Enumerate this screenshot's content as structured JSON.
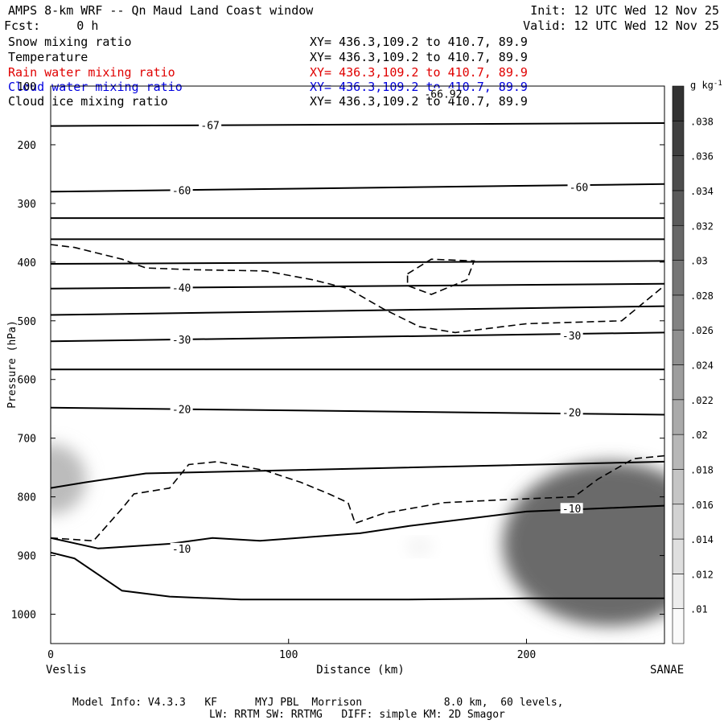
{
  "header": {
    "title_left": "AMPS 8-km WRF -- Qn Maud Land Coast window",
    "init": "Init: 12 UTC Wed 12 Nov 25",
    "fcst": "Fcst:     0 h",
    "valid": "Valid: 12 UTC Wed 12 Nov 25"
  },
  "fields": [
    {
      "name": "Snow mixing ratio",
      "xy": "XY= 436.3,109.2 to 410.7, 89.9",
      "color": "#000000"
    },
    {
      "name": "Temperature",
      "xy": "XY= 436.3,109.2 to 410.7, 89.9",
      "color": "#000000"
    },
    {
      "name": "Rain water mixing ratio",
      "xy": "XY= 436.3,109.2 to 410.7, 89.9",
      "color": "#e00000"
    },
    {
      "name": "Cloud water mixing ratio",
      "xy": "XY= 436.3,109.2 to 410.7, 89.9",
      "color": "#0000e0"
    },
    {
      "name": "Cloud ice mixing ratio",
      "xy": "XY= 436.3,109.2 to 410.7, 89.9",
      "color": "#000000"
    }
  ],
  "footer": {
    "model_info": "Model Info: V4.3.3   KF      MYJ PBL  Morrison             8.0 km,  60 levels,",
    "physics": "LW: RRTM SW: RRTMG   DIFF: simple KM: 2D Smagor"
  },
  "chart_data": {
    "type": "cross-section",
    "xlabel": "Distance (km)",
    "ylabel": "Pressure (hPa)",
    "xlim": [
      0,
      258
    ],
    "ylim": [
      1050,
      100
    ],
    "x_ticks": [
      0,
      100,
      200
    ],
    "y_ticks": [
      100,
      200,
      300,
      400,
      500,
      600,
      700,
      800,
      900,
      1000
    ],
    "x_end_labels": {
      "left": "Veslis",
      "right": "SANAE"
    },
    "colorbar": {
      "unit": "g kg",
      "unit_exp": "-1",
      "ticks": [
        ".01",
        ".012",
        ".014",
        ".016",
        ".018",
        ".02",
        ".022",
        ".024",
        ".026",
        ".028",
        ".03",
        ".032",
        ".034",
        ".036",
        ".038"
      ]
    },
    "temperature_contours": [
      {
        "label": "-67",
        "points": [
          [
            0,
            168
          ],
          [
            258,
            163
          ]
        ]
      },
      {
        "label": "-60",
        "points": [
          [
            0,
            280
          ],
          [
            258,
            267
          ]
        ]
      },
      {
        "label": "",
        "points": [
          [
            0,
            325
          ],
          [
            258,
            325
          ]
        ]
      },
      {
        "label": "",
        "points": [
          [
            0,
            361
          ],
          [
            258,
            361
          ]
        ]
      },
      {
        "label": "",
        "points": [
          [
            0,
            403
          ],
          [
            258,
            398
          ]
        ]
      },
      {
        "label": "-40",
        "points": [
          [
            0,
            445
          ],
          [
            258,
            437
          ]
        ]
      },
      {
        "label": "",
        "points": [
          [
            0,
            490
          ],
          [
            258,
            475
          ]
        ]
      },
      {
        "label": "-30",
        "points": [
          [
            0,
            535
          ],
          [
            258,
            520
          ]
        ]
      },
      {
        "label": "",
        "points": [
          [
            0,
            583
          ],
          [
            258,
            583
          ]
        ]
      },
      {
        "label": "-20",
        "points": [
          [
            0,
            648
          ],
          [
            258,
            660
          ]
        ]
      },
      {
        "label": "",
        "points": [
          [
            0,
            785
          ],
          [
            15,
            775
          ],
          [
            40,
            760
          ],
          [
            258,
            740
          ]
        ]
      },
      {
        "label": "-10",
        "points": [
          [
            0,
            870
          ],
          [
            20,
            888
          ],
          [
            50,
            880
          ],
          [
            68,
            870
          ],
          [
            88,
            875
          ],
          [
            130,
            862
          ],
          [
            150,
            850
          ],
          [
            200,
            825
          ],
          [
            258,
            815
          ]
        ]
      }
    ],
    "temperature_labels_extra": [
      {
        "label": "-60",
        "x": 222,
        "p": 272
      },
      {
        "label": "-30",
        "x": 219,
        "p": 525
      },
      {
        "label": "-20",
        "x": 219,
        "p": 656
      },
      {
        "label": "-10",
        "x": 219,
        "p": 820
      },
      {
        "label": "-66.92",
        "x": 165,
        "p": 113
      }
    ],
    "cloud_ice_contours": [
      {
        "points": [
          [
            0,
            370
          ],
          [
            10,
            375
          ],
          [
            20,
            385
          ],
          [
            30,
            395
          ],
          [
            40,
            410
          ],
          [
            60,
            413
          ],
          [
            90,
            415
          ],
          [
            110,
            430
          ],
          [
            125,
            445
          ],
          [
            140,
            480
          ],
          [
            155,
            510
          ],
          [
            170,
            520
          ],
          [
            200,
            505
          ],
          [
            240,
            500
          ],
          [
            258,
            440
          ]
        ]
      },
      {
        "points": [
          [
            150,
            420
          ],
          [
            160,
            395
          ],
          [
            178,
            398
          ],
          [
            175,
            430
          ],
          [
            160,
            455
          ],
          [
            150,
            440
          ],
          [
            150,
            420
          ]
        ]
      },
      {
        "points": [
          [
            0,
            870
          ],
          [
            18,
            875
          ],
          [
            30,
            820
          ],
          [
            35,
            795
          ],
          [
            50,
            785
          ],
          [
            58,
            745
          ],
          [
            70,
            740
          ],
          [
            90,
            755
          ],
          [
            105,
            775
          ],
          [
            117,
            795
          ],
          [
            125,
            810
          ],
          [
            128,
            845
          ],
          [
            140,
            828
          ],
          [
            165,
            810
          ],
          [
            190,
            805
          ],
          [
            220,
            800
          ],
          [
            230,
            770
          ],
          [
            245,
            735
          ],
          [
            258,
            730
          ]
        ]
      }
    ],
    "snow_shading": [
      {
        "x": 0,
        "p": 770,
        "rx": 15,
        "rp": 60,
        "value": 0.018
      },
      {
        "x": 235,
        "p": 880,
        "rx": 45,
        "rp": 140,
        "value": 0.03
      },
      {
        "x": 155,
        "p": 885,
        "rx": 5,
        "rp": 10,
        "value": 0.011
      }
    ],
    "terrain": {
      "points": [
        [
          0,
          895
        ],
        [
          10,
          905
        ],
        [
          30,
          960
        ],
        [
          50,
          970
        ],
        [
          80,
          975
        ],
        [
          150,
          975
        ],
        [
          200,
          973
        ],
        [
          258,
          973
        ]
      ]
    }
  }
}
